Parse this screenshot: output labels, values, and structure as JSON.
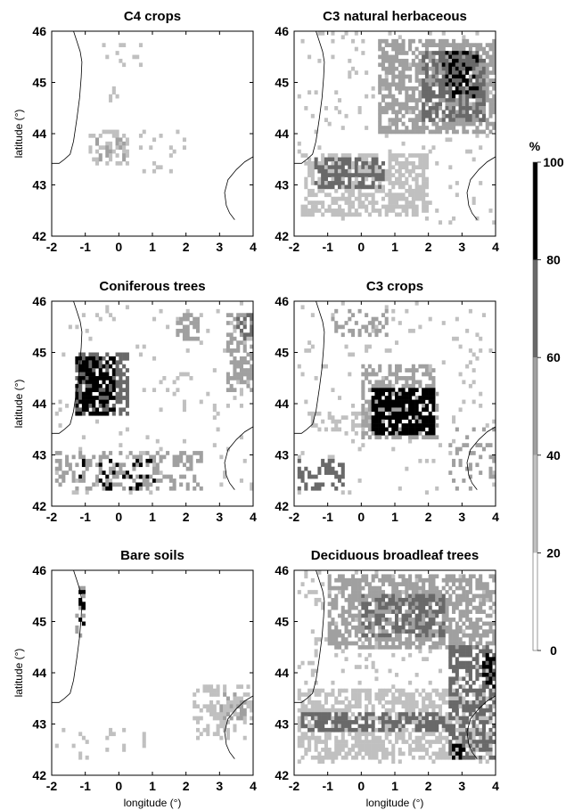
{
  "chart_data": {
    "type": "heatmap",
    "xlabel": "longitude (°)",
    "ylabel": "latitude (°)",
    "xlim": [
      -2,
      4
    ],
    "ylim": [
      42,
      46
    ],
    "xticks": [
      "-2",
      "-1",
      "0",
      "1",
      "2",
      "3",
      "4"
    ],
    "yticks": [
      "42",
      "43",
      "44",
      "45",
      "46"
    ],
    "colorbar": {
      "title": "%",
      "ticks": [
        "0",
        "20",
        "40",
        "60",
        "80",
        "100"
      ],
      "range": [
        0,
        100
      ],
      "colors": [
        "#ffffff",
        "#c0c0c0",
        "#a0a0a0",
        "#696969",
        "#000000"
      ]
    },
    "panels": [
      {
        "title": "C4 crops",
        "patches": [
          {
            "lon": [
              -0.9,
              0.3
            ],
            "lat": [
              43.35,
              44.05
            ],
            "density": 0.35,
            "level": 1
          },
          {
            "lon": [
              -0.7,
              0.2
            ],
            "lat": [
              43.5,
              43.95
            ],
            "density": 0.28,
            "level": 2
          },
          {
            "lon": [
              -0.5,
              0.7
            ],
            "lat": [
              45.3,
              45.85
            ],
            "density": 0.15,
            "level": 1
          },
          {
            "lon": [
              -0.3,
              0.0
            ],
            "lat": [
              44.6,
              44.95
            ],
            "density": 0.35,
            "level": 1
          },
          {
            "lon": [
              0.6,
              2.2
            ],
            "lat": [
              43.2,
              44.05
            ],
            "density": 0.12,
            "level": 1
          }
        ]
      },
      {
        "title": "C3 natural herbaceous",
        "patches": [
          {
            "lon": [
              0.5,
              4.0
            ],
            "lat": [
              44.0,
              45.85
            ],
            "density": 0.65,
            "level": 2
          },
          {
            "lon": [
              1.8,
              3.7
            ],
            "lat": [
              44.2,
              45.6
            ],
            "density": 0.6,
            "level": 3
          },
          {
            "lon": [
              2.4,
              3.5
            ],
            "lat": [
              44.7,
              45.6
            ],
            "density": 0.35,
            "level": 4
          },
          {
            "lon": [
              -1.7,
              2.0
            ],
            "lat": [
              42.4,
              43.6
            ],
            "density": 0.6,
            "level": 1
          },
          {
            "lon": [
              -1.4,
              0.7
            ],
            "lat": [
              42.9,
              43.5
            ],
            "density": 0.6,
            "level": 3
          },
          {
            "lon": [
              -1.9,
              4.0
            ],
            "lat": [
              42.2,
              46.0
            ],
            "density": 0.06,
            "level": 1
          }
        ]
      },
      {
        "title": "Coniferous trees",
        "patches": [
          {
            "lon": [
              -1.3,
              0.3
            ],
            "lat": [
              43.75,
              45.0
            ],
            "density": 0.65,
            "level": 3
          },
          {
            "lon": [
              -1.25,
              -0.1
            ],
            "lat": [
              43.8,
              44.9
            ],
            "density": 0.6,
            "level": 4
          },
          {
            "lon": [
              1.7,
              2.4
            ],
            "lat": [
              45.2,
              45.8
            ],
            "density": 0.5,
            "level": 2
          },
          {
            "lon": [
              3.2,
              4.0
            ],
            "lat": [
              44.2,
              45.8
            ],
            "density": 0.5,
            "level": 2
          },
          {
            "lon": [
              3.5,
              4.0
            ],
            "lat": [
              45.2,
              45.8
            ],
            "density": 0.45,
            "level": 3
          },
          {
            "lon": [
              -1.9,
              2.5
            ],
            "lat": [
              42.3,
              43.1
            ],
            "density": 0.35,
            "level": 2
          },
          {
            "lon": [
              -1.2,
              1.2
            ],
            "lat": [
              42.3,
              42.9
            ],
            "density": 0.18,
            "level": 4
          },
          {
            "lon": [
              -1.9,
              4.0
            ],
            "lat": [
              42.2,
              46.0
            ],
            "density": 0.05,
            "level": 1
          }
        ]
      },
      {
        "title": "C3 crops",
        "patches": [
          {
            "lon": [
              0.0,
              2.3
            ],
            "lat": [
              43.3,
              44.8
            ],
            "density": 0.55,
            "level": 2
          },
          {
            "lon": [
              0.3,
              2.2
            ],
            "lat": [
              43.4,
              44.3
            ],
            "density": 0.75,
            "level": 4
          },
          {
            "lon": [
              -1.9,
              -0.5
            ],
            "lat": [
              42.3,
              42.9
            ],
            "density": 0.5,
            "level": 3
          },
          {
            "lon": [
              -0.9,
              0.9
            ],
            "lat": [
              45.3,
              45.85
            ],
            "density": 0.35,
            "level": 2
          },
          {
            "lon": [
              -1.5,
              0.3
            ],
            "lat": [
              43.5,
              43.9
            ],
            "density": 0.35,
            "level": 1
          },
          {
            "lon": [
              2.6,
              4.0
            ],
            "lat": [
              42.3,
              43.5
            ],
            "density": 0.2,
            "level": 2
          },
          {
            "lon": [
              -1.9,
              4.0
            ],
            "lat": [
              42.2,
              46.0
            ],
            "density": 0.04,
            "level": 1
          }
        ]
      },
      {
        "title": "Bare soils",
        "patches": [
          {
            "lon": [
              -1.25,
              -1.0
            ],
            "lat": [
              44.7,
              45.8
            ],
            "density": 0.45,
            "level": 2
          },
          {
            "lon": [
              -1.2,
              -1.05
            ],
            "lat": [
              44.8,
              45.7
            ],
            "density": 0.25,
            "level": 4
          },
          {
            "lon": [
              2.2,
              4.0
            ],
            "lat": [
              42.7,
              43.8
            ],
            "density": 0.45,
            "level": 1
          },
          {
            "lon": [
              3.0,
              3.8
            ],
            "lat": [
              43.1,
              43.6
            ],
            "density": 0.4,
            "level": 2
          },
          {
            "lon": [
              -1.9,
              1.0
            ],
            "lat": [
              42.3,
              42.9
            ],
            "density": 0.1,
            "level": 1
          }
        ]
      },
      {
        "title": "Deciduous broadleaf trees",
        "patches": [
          {
            "lon": [
              -1.0,
              4.0
            ],
            "lat": [
              44.5,
              45.9
            ],
            "density": 0.65,
            "level": 2
          },
          {
            "lon": [
              0.0,
              2.5
            ],
            "lat": [
              44.7,
              45.5
            ],
            "density": 0.5,
            "level": 3
          },
          {
            "lon": [
              -1.9,
              4.0
            ],
            "lat": [
              42.3,
              43.7
            ],
            "density": 0.55,
            "level": 1
          },
          {
            "lon": [
              -1.8,
              2.8
            ],
            "lat": [
              42.85,
              43.2
            ],
            "density": 0.6,
            "level": 3
          },
          {
            "lon": [
              2.6,
              4.0
            ],
            "lat": [
              42.3,
              44.5
            ],
            "density": 0.55,
            "level": 3
          },
          {
            "lon": [
              3.6,
              4.0
            ],
            "lat": [
              43.7,
              44.4
            ],
            "density": 0.5,
            "level": 4
          },
          {
            "lon": [
              2.7,
              3.1
            ],
            "lat": [
              42.3,
              42.6
            ],
            "density": 0.5,
            "level": 4
          },
          {
            "lon": [
              -1.9,
              4.0
            ],
            "lat": [
              42.2,
              46.0
            ],
            "density": 0.1,
            "level": 1
          }
        ]
      }
    ]
  }
}
